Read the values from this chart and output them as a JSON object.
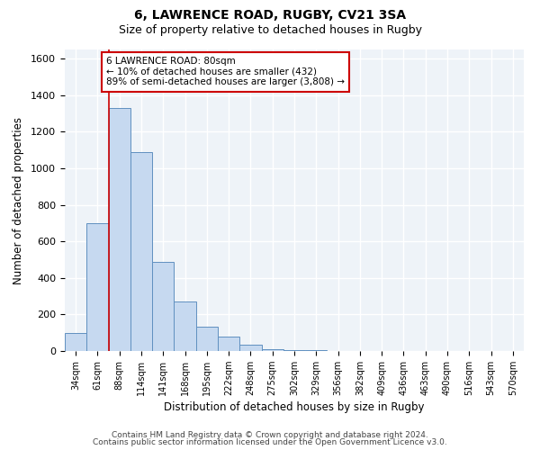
{
  "title1": "6, LAWRENCE ROAD, RUGBY, CV21 3SA",
  "title2": "Size of property relative to detached houses in Rugby",
  "xlabel": "Distribution of detached houses by size in Rugby",
  "ylabel": "Number of detached properties",
  "bar_labels": [
    "34sqm",
    "61sqm",
    "88sqm",
    "114sqm",
    "141sqm",
    "168sqm",
    "195sqm",
    "222sqm",
    "248sqm",
    "275sqm",
    "302sqm",
    "329sqm",
    "356sqm",
    "382sqm",
    "409sqm",
    "436sqm",
    "463sqm",
    "490sqm",
    "516sqm",
    "543sqm",
    "570sqm"
  ],
  "bar_values": [
    100,
    700,
    1330,
    1090,
    490,
    270,
    135,
    80,
    35,
    10,
    5,
    3,
    1,
    0,
    0,
    0,
    0,
    0,
    0,
    0,
    0
  ],
  "bar_color": "#c6d9f0",
  "bar_edge_color": "#6090c0",
  "grid_color": "#c8d8e8",
  "vline_x": 1.5,
  "vline_color": "#cc0000",
  "annotation_text": "6 LAWRENCE ROAD: 80sqm\n← 10% of detached houses are smaller (432)\n89% of semi-detached houses are larger (3,808) →",
  "annotation_box_color": "white",
  "annotation_box_edge": "#cc0000",
  "ylim": [
    0,
    1650
  ],
  "yticks": [
    0,
    200,
    400,
    600,
    800,
    1000,
    1200,
    1400,
    1600
  ],
  "footer1": "Contains HM Land Registry data © Crown copyright and database right 2024.",
  "footer2": "Contains public sector information licensed under the Open Government Licence v3.0."
}
